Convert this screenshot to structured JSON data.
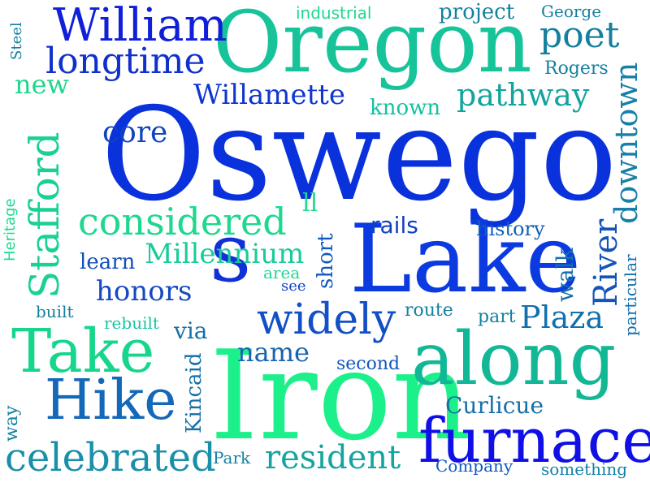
{
  "words": [
    {
      "text": "Oswego",
      "color": "#0a32dc"
    },
    {
      "text": "Iron",
      "color": "#1cf08a"
    },
    {
      "text": "Oregon",
      "color": "#17c49a"
    },
    {
      "text": "Lake",
      "color": "#0a3ae0"
    },
    {
      "text": "along",
      "color": "#12b896"
    },
    {
      "text": "furnace",
      "color": "#1010e6"
    },
    {
      "text": "Take",
      "color": "#16d68c"
    },
    {
      "text": "Hike",
      "color": "#1468b8"
    },
    {
      "text": "William",
      "color": "#1020d8"
    },
    {
      "text": "considered",
      "color": "#1ed88e"
    },
    {
      "text": "celebrated",
      "color": "#1990a8"
    },
    {
      "text": "resident",
      "color": "#16a4a0"
    },
    {
      "text": "s",
      "color": "#1030d8"
    },
    {
      "text": "widely",
      "color": "#1250c8"
    },
    {
      "text": "longtime",
      "color": "#1030cc"
    },
    {
      "text": "pathway",
      "color": "#14a49e"
    },
    {
      "text": "poet",
      "color": "#15809e"
    },
    {
      "text": "Willamette",
      "color": "#1036d0"
    },
    {
      "text": "name",
      "color": "#1664b0"
    },
    {
      "text": "honors",
      "color": "#1548c2"
    },
    {
      "text": "Stafford",
      "color": "#1ad094"
    },
    {
      "text": "downtown",
      "color": "#1780a8"
    },
    {
      "text": "River",
      "color": "#1454b8"
    },
    {
      "text": "walk",
      "color": "#1470a8"
    },
    {
      "text": "Plaza",
      "color": "#1070b0"
    },
    {
      "text": "rails",
      "color": "#1040c0"
    },
    {
      "text": "core",
      "color": "#1044c0"
    },
    {
      "text": "new",
      "color": "#1ed78a"
    },
    {
      "text": "Millennium",
      "color": "#18cc9a"
    },
    {
      "text": "Kincaid",
      "color": "#1470a8"
    },
    {
      "text": "Curlicue",
      "color": "#1470a8"
    },
    {
      "text": "project",
      "color": "#1480a0"
    },
    {
      "text": "learn",
      "color": "#1050b8"
    },
    {
      "text": "known",
      "color": "#16c0a0"
    },
    {
      "text": "short",
      "color": "#1058c0"
    },
    {
      "text": "history",
      "color": "#1060b8"
    },
    {
      "text": "Park",
      "color": "#1480a4"
    },
    {
      "text": "Company",
      "color": "#1058c0"
    },
    {
      "text": "something",
      "color": "#1480a8"
    },
    {
      "text": "via",
      "color": "#1470a8"
    },
    {
      "text": "industrial",
      "color": "#1ed890"
    },
    {
      "text": "particular",
      "color": "#1470b0"
    },
    {
      "text": "second",
      "color": "#1058c0"
    },
    {
      "text": "route",
      "color": "#1480a0"
    },
    {
      "text": "part",
      "color": "#1480a0"
    },
    {
      "text": "area",
      "color": "#1ed890"
    },
    {
      "text": "see",
      "color": "#1044c4"
    },
    {
      "text": "built",
      "color": "#1480a0"
    },
    {
      "text": "rebuilt",
      "color": "#18c4a0"
    },
    {
      "text": "ll",
      "color": "#1ed890"
    },
    {
      "text": "Rogers",
      "color": "#1480a0"
    },
    {
      "text": "George",
      "color": "#1480a0"
    },
    {
      "text": "Steel",
      "color": "#1480a0"
    },
    {
      "text": "Heritage",
      "color": "#1ed890"
    },
    {
      "text": "way",
      "color": "#1480a0"
    }
  ]
}
